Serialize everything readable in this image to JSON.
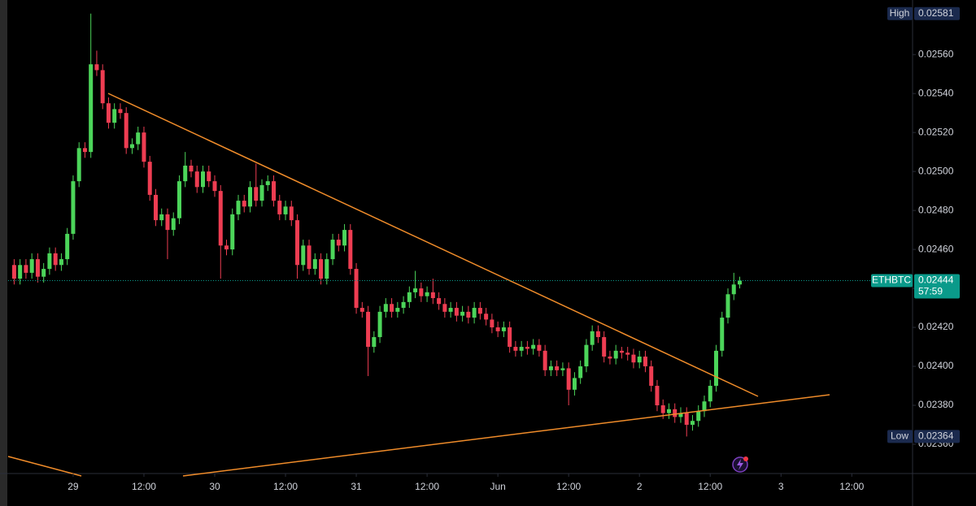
{
  "chart_data": {
    "type": "candlestick",
    "x": [
      14,
      15,
      16,
      17,
      18,
      19,
      20,
      21,
      22,
      23,
      24,
      25,
      26,
      27,
      28,
      29,
      30,
      31,
      32,
      33,
      34,
      35,
      36,
      37,
      38,
      39,
      40,
      41,
      42,
      43,
      44,
      45,
      46,
      47,
      48,
      49,
      50,
      51,
      52,
      53,
      54,
      55,
      56,
      57,
      58,
      59,
      60,
      61,
      62,
      63,
      64,
      65,
      66,
      67,
      68,
      69,
      70,
      71,
      72,
      73,
      74,
      75,
      76,
      77,
      78,
      79,
      80,
      81,
      82,
      83,
      84,
      85,
      86,
      87,
      88,
      89,
      90,
      91,
      92,
      93,
      94,
      95,
      96,
      97,
      98,
      99,
      100,
      101,
      102,
      103,
      104,
      105,
      106,
      107,
      108,
      109,
      110,
      111,
      112,
      113,
      114,
      115,
      116,
      117,
      118,
      119,
      120,
      121,
      122,
      123,
      124,
      125,
      126,
      127,
      128,
      129,
      130,
      131,
      132,
      133,
      134,
      135,
      136,
      137
    ],
    "open": [
      0.02452,
      0.02445,
      0.02452,
      0.02448,
      0.02455,
      0.02446,
      0.0245,
      0.02458,
      0.02452,
      0.02455,
      0.02468,
      0.02495,
      0.02512,
      0.0251,
      0.02555,
      0.02552,
      0.02535,
      0.02525,
      0.02532,
      0.0253,
      0.02512,
      0.02514,
      0.0252,
      0.02505,
      0.02488,
      0.02475,
      0.02478,
      0.0247,
      0.02476,
      0.02495,
      0.02503,
      0.025,
      0.02492,
      0.025,
      0.02495,
      0.0249,
      0.02462,
      0.0246,
      0.02478,
      0.02485,
      0.02482,
      0.02492,
      0.02485,
      0.02493,
      0.02495,
      0.02485,
      0.02478,
      0.02482,
      0.02475,
      0.02452,
      0.02462,
      0.0245,
      0.02455,
      0.02445,
      0.02455,
      0.02465,
      0.02462,
      0.0247,
      0.0245,
      0.0243,
      0.02428,
      0.0241,
      0.02415,
      0.02428,
      0.02432,
      0.02428,
      0.0243,
      0.02433,
      0.02438,
      0.0244,
      0.02436,
      0.02438,
      0.02435,
      0.02432,
      0.02428,
      0.0243,
      0.02426,
      0.02428,
      0.02425,
      0.0243,
      0.02427,
      0.02424,
      0.0242,
      0.02418,
      0.0242,
      0.0241,
      0.02408,
      0.0241,
      0.02409,
      0.02411,
      0.02408,
      0.02398,
      0.024,
      0.02398,
      0.02399,
      0.02388,
      0.02394,
      0.024,
      0.02411,
      0.02418,
      0.02415,
      0.02405,
      0.02404,
      0.02408,
      0.02407,
      0.02406,
      0.02402,
      0.02405,
      0.024,
      0.0239,
      0.0238,
      0.02376,
      0.02378,
      0.02374,
      0.02376,
      0.0237,
      0.02372,
      0.02377,
      0.02382,
      0.0239,
      0.02408,
      0.02425,
      0.02437,
      0.02442
    ],
    "high": [
      0.02455,
      0.02455,
      0.02455,
      0.02458,
      0.02458,
      0.02453,
      0.02461,
      0.02461,
      0.02458,
      0.02471,
      0.02498,
      0.02515,
      0.02515,
      0.02581,
      0.02562,
      0.02555,
      0.02538,
      0.02535,
      0.02535,
      0.02533,
      0.02517,
      0.02523,
      0.02523,
      0.02508,
      0.02491,
      0.02481,
      0.02481,
      0.02479,
      0.02498,
      0.0251,
      0.02506,
      0.02503,
      0.02503,
      0.02503,
      0.02498,
      0.02493,
      0.02465,
      0.02481,
      0.02488,
      0.02488,
      0.02495,
      0.02504,
      0.02496,
      0.02498,
      0.02498,
      0.02488,
      0.02485,
      0.02485,
      0.02478,
      0.02465,
      0.02465,
      0.02458,
      0.02458,
      0.02458,
      0.02468,
      0.02468,
      0.02473,
      0.02473,
      0.02453,
      0.02433,
      0.02431,
      0.02418,
      0.02431,
      0.02435,
      0.02435,
      0.02433,
      0.02436,
      0.02441,
      0.02449,
      0.02443,
      0.02441,
      0.02445,
      0.02438,
      0.02435,
      0.02433,
      0.02433,
      0.02431,
      0.02431,
      0.02433,
      0.02433,
      0.0243,
      0.02427,
      0.02423,
      0.02423,
      0.02423,
      0.02413,
      0.02413,
      0.02413,
      0.02414,
      0.02414,
      0.02411,
      0.02403,
      0.02403,
      0.02402,
      0.02402,
      0.02397,
      0.02403,
      0.02414,
      0.02421,
      0.02421,
      0.02418,
      0.02408,
      0.02411,
      0.0241,
      0.0241,
      0.02409,
      0.02408,
      0.02408,
      0.02403,
      0.02393,
      0.02383,
      0.02381,
      0.02381,
      0.02379,
      0.02379,
      0.02375,
      0.0238,
      0.02385,
      0.02393,
      0.02411,
      0.02428,
      0.0244,
      0.02448,
      0.02446
    ],
    "low": [
      0.02442,
      0.02442,
      0.02445,
      0.02445,
      0.02443,
      0.02443,
      0.02447,
      0.02449,
      0.02449,
      0.02452,
      0.02465,
      0.02492,
      0.02507,
      0.02507,
      0.02549,
      0.02532,
      0.02522,
      0.02522,
      0.02527,
      0.02509,
      0.02509,
      0.02511,
      0.02502,
      0.02485,
      0.02472,
      0.02472,
      0.02455,
      0.02467,
      0.02473,
      0.02492,
      0.02497,
      0.02489,
      0.02489,
      0.02492,
      0.02487,
      0.02445,
      0.02457,
      0.02457,
      0.02475,
      0.02479,
      0.02479,
      0.02482,
      0.02482,
      0.0249,
      0.02482,
      0.02475,
      0.02475,
      0.02472,
      0.02445,
      0.02449,
      0.02447,
      0.02447,
      0.02442,
      0.02442,
      0.02452,
      0.02459,
      0.02459,
      0.02447,
      0.02427,
      0.02425,
      0.02395,
      0.02407,
      0.02412,
      0.02425,
      0.02425,
      0.02425,
      0.02427,
      0.0243,
      0.02435,
      0.02433,
      0.02433,
      0.02432,
      0.02429,
      0.02425,
      0.02425,
      0.02423,
      0.02423,
      0.02422,
      0.02422,
      0.02424,
      0.02421,
      0.02417,
      0.02415,
      0.02415,
      0.02407,
      0.02405,
      0.02405,
      0.02406,
      0.02406,
      0.02405,
      0.02395,
      0.02395,
      0.02395,
      0.02395,
      0.0238,
      0.02385,
      0.02391,
      0.02397,
      0.02408,
      0.02412,
      0.02402,
      0.02401,
      0.02401,
      0.02404,
      0.02403,
      0.02399,
      0.02399,
      0.02397,
      0.02387,
      0.02377,
      0.02373,
      0.02373,
      0.02371,
      0.02371,
      0.02364,
      0.02367,
      0.02369,
      0.02374,
      0.02379,
      0.02387,
      0.02405,
      0.02422,
      0.02434,
      0.0244
    ],
    "close": [
      0.02445,
      0.02452,
      0.02448,
      0.02455,
      0.02446,
      0.0245,
      0.02458,
      0.02452,
      0.02455,
      0.02468,
      0.02495,
      0.02512,
      0.0251,
      0.02555,
      0.02552,
      0.02535,
      0.02525,
      0.02532,
      0.0253,
      0.02512,
      0.02514,
      0.0252,
      0.02505,
      0.02488,
      0.02475,
      0.02478,
      0.0247,
      0.02476,
      0.02495,
      0.02503,
      0.025,
      0.02492,
      0.025,
      0.02495,
      0.0249,
      0.02462,
      0.0246,
      0.02478,
      0.02485,
      0.02482,
      0.02492,
      0.02485,
      0.02493,
      0.02495,
      0.02485,
      0.02478,
      0.02482,
      0.02475,
      0.02452,
      0.02462,
      0.0245,
      0.02455,
      0.02445,
      0.02455,
      0.02465,
      0.02462,
      0.0247,
      0.0245,
      0.0243,
      0.02428,
      0.0241,
      0.02415,
      0.02428,
      0.02432,
      0.02428,
      0.0243,
      0.02433,
      0.02438,
      0.0244,
      0.02436,
      0.02438,
      0.02435,
      0.02432,
      0.02428,
      0.0243,
      0.02426,
      0.02428,
      0.02425,
      0.0243,
      0.02427,
      0.02424,
      0.0242,
      0.02418,
      0.0242,
      0.0241,
      0.02408,
      0.0241,
      0.02409,
      0.02411,
      0.02408,
      0.02398,
      0.024,
      0.02398,
      0.02399,
      0.02388,
      0.02394,
      0.024,
      0.02411,
      0.02418,
      0.02415,
      0.02405,
      0.02404,
      0.02408,
      0.02407,
      0.02406,
      0.02402,
      0.02405,
      0.024,
      0.0239,
      0.0238,
      0.02376,
      0.02378,
      0.02374,
      0.02376,
      0.0237,
      0.02372,
      0.02377,
      0.02382,
      0.0239,
      0.02408,
      0.02425,
      0.02437,
      0.02442,
      0.02444
    ],
    "up_color": "#4cd55a",
    "down_color": "#ee3d52",
    "xlim": [
      11.6,
      166.3
    ],
    "xticks": [
      {
        "value": 24,
        "label": "29"
      },
      {
        "value": 36,
        "label": "12:00"
      },
      {
        "value": 48,
        "label": "30"
      },
      {
        "value": 60,
        "label": "12:00"
      },
      {
        "value": 72,
        "label": "31"
      },
      {
        "value": 84,
        "label": "12:00"
      },
      {
        "value": 96,
        "label": "Jun"
      },
      {
        "value": 108,
        "label": "12:00"
      },
      {
        "value": 120,
        "label": "2"
      },
      {
        "value": 132,
        "label": "12:00"
      },
      {
        "value": 144,
        "label": "3"
      },
      {
        "value": 156,
        "label": "12:00"
      }
    ],
    "ylim": [
      0.02345,
      0.02588
    ],
    "yticks": [
      {
        "value": 0.0236,
        "label": "0.02360"
      },
      {
        "value": 0.0238,
        "label": "0.02380"
      },
      {
        "value": 0.024,
        "label": "0.02400"
      },
      {
        "value": 0.0242,
        "label": "0.02420"
      },
      {
        "value": 0.0244,
        "label": "0.02440"
      },
      {
        "value": 0.0246,
        "label": "0.02460"
      },
      {
        "value": 0.0248,
        "label": "0.02480"
      },
      {
        "value": 0.025,
        "label": "0.02500"
      },
      {
        "value": 0.0252,
        "label": "0.02520"
      },
      {
        "value": 0.0254,
        "label": "0.02540"
      },
      {
        "value": 0.0256,
        "label": "0.02560"
      }
    ],
    "high_marker": {
      "label": "High",
      "value": 0.02581
    },
    "low_marker": {
      "label": "Low",
      "value": 0.02364
    },
    "last_price": {
      "symbol": "ETHBTC",
      "value": 0.02444,
      "countdown": "57:59",
      "color": "#0a9a8a"
    }
  }
}
